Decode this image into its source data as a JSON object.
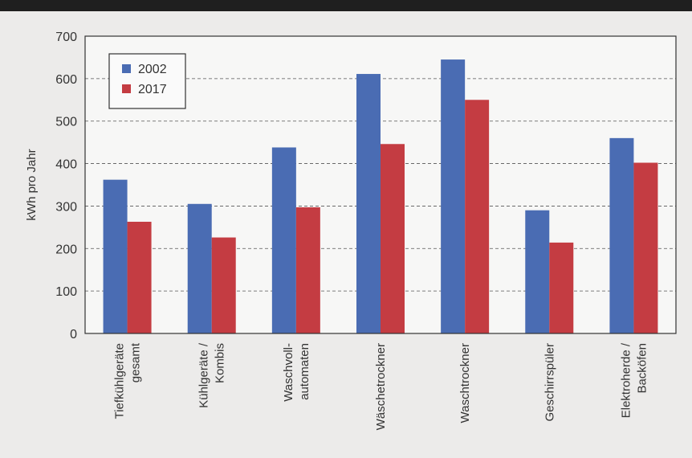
{
  "chart_data": {
    "type": "bar",
    "title": "",
    "xlabel": "",
    "ylabel": "kWh pro Jahr",
    "ylim": [
      0,
      700
    ],
    "yticks": [
      0,
      100,
      200,
      300,
      400,
      500,
      600,
      700
    ],
    "grid": "horizontal dashed",
    "legend_position": "top-left",
    "categories": [
      [
        "Tiefkühlgeräte",
        "gesamt"
      ],
      [
        "Kühlgeräte /",
        "Kombis"
      ],
      [
        "Waschvoll-",
        "automaten"
      ],
      [
        "Wäschetrockner"
      ],
      [
        "Waschtrockner"
      ],
      [
        "Geschirrspüler"
      ],
      [
        "Elektroherde /",
        "Backöfen"
      ]
    ],
    "series": [
      {
        "name": "2002",
        "color": "#4a6cb3",
        "values": [
          362,
          305,
          438,
          611,
          645,
          290,
          460
        ]
      },
      {
        "name": "2017",
        "color": "#c43c42",
        "values": [
          263,
          226,
          297,
          446,
          550,
          214,
          402
        ]
      }
    ]
  }
}
